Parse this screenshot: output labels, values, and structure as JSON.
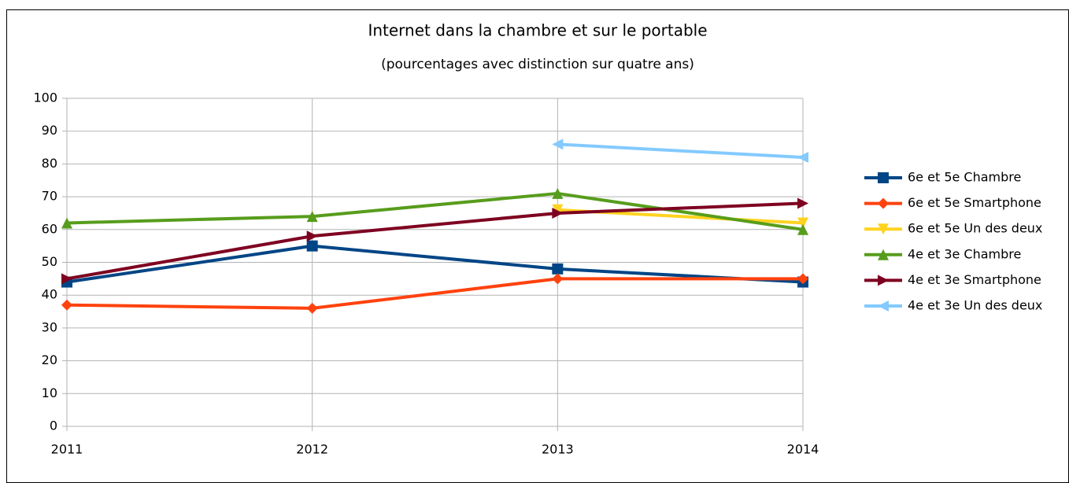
{
  "chart_data": {
    "type": "line",
    "title": "Internet dans la chambre et sur le portable",
    "subtitle": "(pourcentages avec distinction sur quatre ans)",
    "categories": [
      "2011",
      "2012",
      "2013",
      "2014"
    ],
    "series": [
      {
        "name": "6e et 5e Chambre",
        "color": "#004586",
        "marker": "square",
        "values": [
          44,
          55,
          48,
          44
        ]
      },
      {
        "name": "6e et 5e Smartphone",
        "color": "#ff420e",
        "marker": "diamond",
        "values": [
          37,
          36,
          45,
          45
        ]
      },
      {
        "name": "6e et 5e Un des deux",
        "color": "#ffd320",
        "marker": "triangle-down",
        "values": [
          null,
          null,
          66,
          62
        ]
      },
      {
        "name": "4e et 3e Chambre",
        "color": "#579d1c",
        "marker": "triangle-up",
        "values": [
          62,
          64,
          71,
          60
        ]
      },
      {
        "name": "4e et 3e Smartphone",
        "color": "#7e0021",
        "marker": "triangle-right",
        "values": [
          45,
          58,
          65,
          68
        ]
      },
      {
        "name": "4e et 3e Un des deux",
        "color": "#83caff",
        "marker": "triangle-left",
        "values": [
          null,
          null,
          86,
          82
        ]
      }
    ],
    "ylim": [
      0,
      100
    ],
    "yticks": [
      0,
      10,
      20,
      30,
      40,
      50,
      60,
      70,
      80,
      90,
      100
    ],
    "grid": true,
    "legend": "right"
  }
}
